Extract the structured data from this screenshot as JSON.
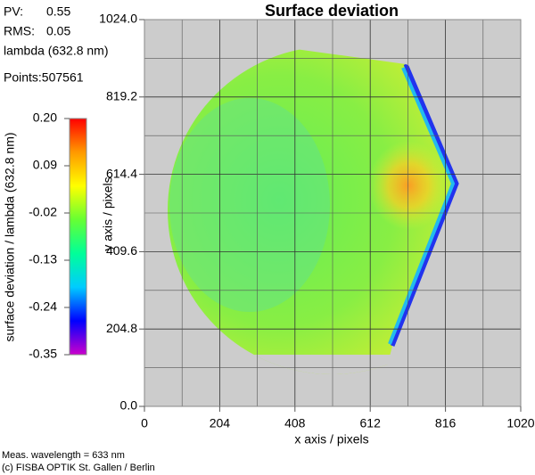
{
  "info": {
    "pv_label": "PV:",
    "pv": 0.55,
    "rms_label": "RMS:",
    "rms": 0.05,
    "lambda": "lambda (632.8 nm)",
    "points": "Points:507561"
  },
  "chart_data": {
    "type": "heatmap",
    "title": "Surface deviation",
    "x_label": "x axis / pixels",
    "y_label": "y axis / pixels",
    "xlim": [
      0,
      1020
    ],
    "ylim": [
      0,
      1024
    ],
    "xticks": [
      0,
      204,
      408,
      612,
      816,
      1020
    ],
    "yticks": [
      {
        "value": 0,
        "label": "0.0"
      },
      204.8,
      409.6,
      614.4,
      819.2,
      {
        "value": 1024,
        "label": "1024.0"
      }
    ],
    "xgrid_minor": [
      102,
      306,
      510,
      714,
      918
    ],
    "ygrid_minor": [
      102.4,
      307.2,
      512,
      716.8,
      921.6
    ],
    "grid": true,
    "colorbar": {
      "label": "surface deviation / lambda (632.8 nm)",
      "lim": [
        -0.35,
        0.2
      ],
      "ticks": [
        {
          "value": 0.2,
          "label": "0.20"
        },
        0.09,
        -0.02,
        -0.13,
        -0.24,
        -0.35
      ],
      "colors": [
        "#ff0000",
        "#ff9900",
        "#ffff00",
        "#66ff33",
        "#00ff99",
        "#00ccff",
        "#0000ff",
        "#cc00cc"
      ]
    }
  },
  "footer": {
    "wavelength": "Meas. wavelength = 633 nm",
    "copyright": "(c) FISBA OPTIK St. Gallen / Berlin"
  }
}
